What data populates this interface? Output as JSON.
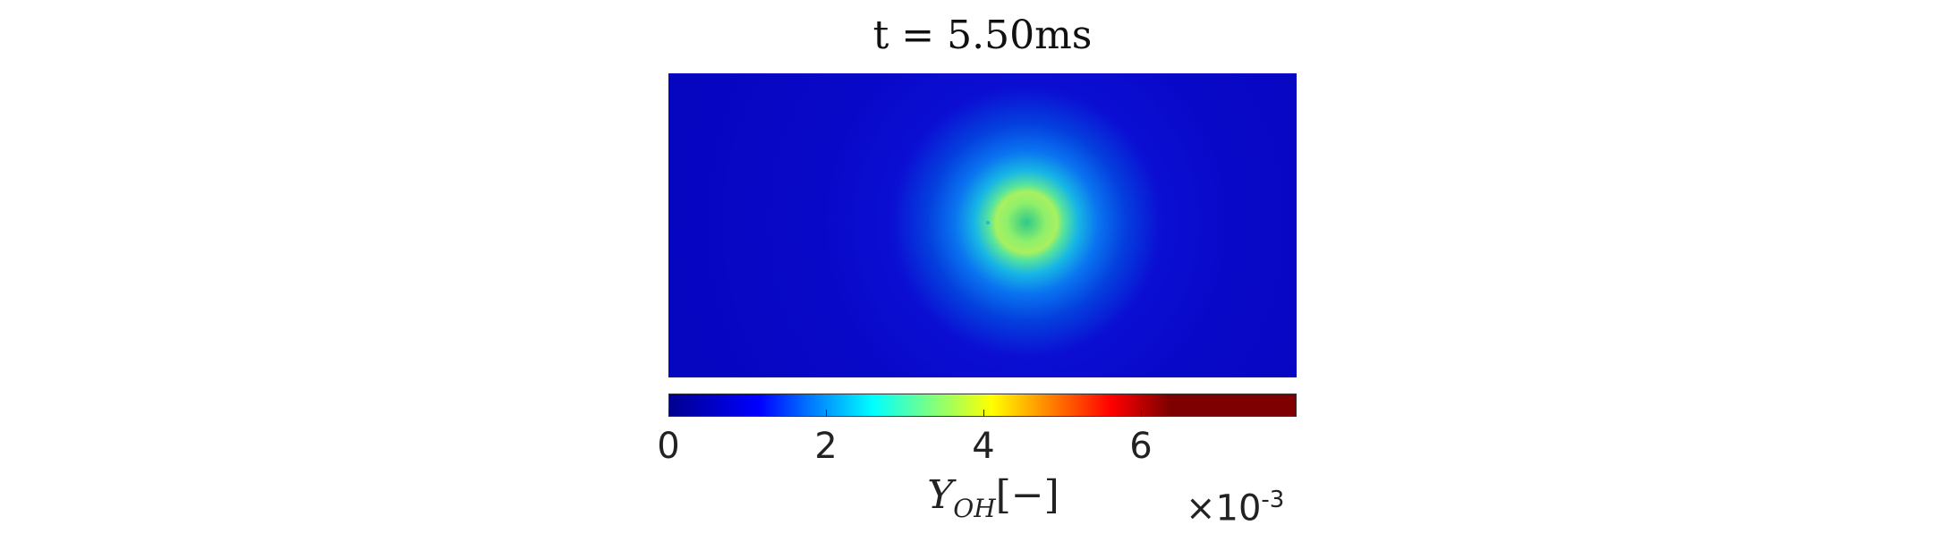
{
  "chart_data": {
    "type": "heatmap",
    "title": "t = 5.50ms",
    "colorbar": {
      "label_var": "Y",
      "label_sub": "OH",
      "label_unit": "[−]",
      "ticks": [
        0,
        2,
        4,
        6
      ],
      "tick_labels": [
        "0",
        "2",
        "4",
        "6"
      ],
      "range": [
        0,
        8
      ],
      "exponent_label": "×10",
      "exponent_power": "-3",
      "colormap": "jet"
    },
    "field": {
      "background_value": 0.5,
      "peak_value": 4.2,
      "center_value": 3.4,
      "feature": "ring"
    }
  }
}
